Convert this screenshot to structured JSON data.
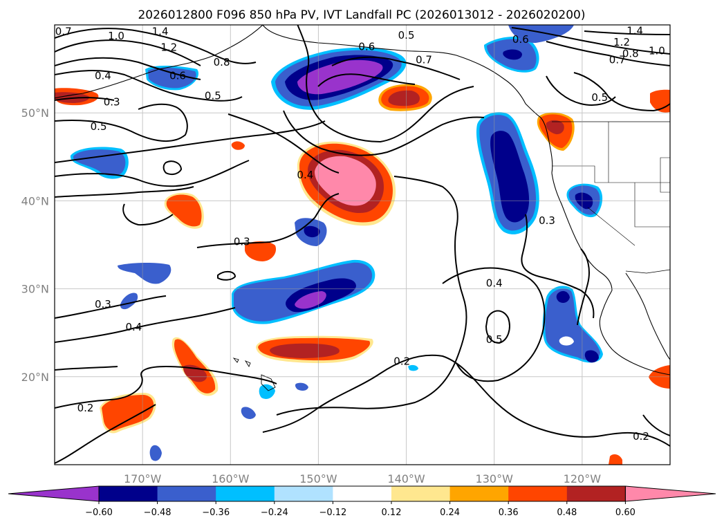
{
  "chart_data": {
    "type": "heatmap",
    "title": "2026012800 F096 850 hPa PV, IVT Landfall PC (2026013012 - 2026020200)",
    "xlabel": "",
    "ylabel": "",
    "lon_range": [
      -180,
      -110
    ],
    "lat_range": [
      10,
      60
    ],
    "x_ticks": [
      {
        "value": -170,
        "label": "170°W"
      },
      {
        "value": -160,
        "label": "160°W"
      },
      {
        "value": -150,
        "label": "150°W"
      },
      {
        "value": -140,
        "label": "140°W"
      },
      {
        "value": -130,
        "label": "130°W"
      },
      {
        "value": -120,
        "label": "120°W"
      }
    ],
    "y_ticks": [
      {
        "value": 20,
        "label": "20°N"
      },
      {
        "value": 30,
        "label": "30°N"
      },
      {
        "value": 40,
        "label": "40°N"
      },
      {
        "value": 50,
        "label": "50°N"
      }
    ],
    "colorbar": {
      "ticks": [
        {
          "value": -0.6,
          "label": "−0.60"
        },
        {
          "value": -0.48,
          "label": "−0.48"
        },
        {
          "value": -0.36,
          "label": "−0.36"
        },
        {
          "value": -0.24,
          "label": "−0.24"
        },
        {
          "value": -0.12,
          "label": "−0.12"
        },
        {
          "value": 0.12,
          "label": "0.12"
        },
        {
          "value": 0.24,
          "label": "0.24"
        },
        {
          "value": 0.36,
          "label": "0.36"
        },
        {
          "value": 0.48,
          "label": "0.48"
        },
        {
          "value": 0.6,
          "label": "0.60"
        }
      ],
      "colors": [
        "#9933cc",
        "#00008b",
        "#3a5fcd",
        "#00bfff",
        "#b0e2ff",
        "#ffffff",
        "#ffe78f",
        "#ffa500",
        "#ff4500",
        "#b22222",
        "#ff88aa"
      ]
    },
    "contour_labels": [
      {
        "text": "0.7",
        "lon": -179,
        "lat": 59.0
      },
      {
        "text": "1.0",
        "lon": -173,
        "lat": 58.5
      },
      {
        "text": "1.4",
        "lon": -168,
        "lat": 59.0
      },
      {
        "text": "1.2",
        "lon": -167,
        "lat": 57.2
      },
      {
        "text": "0.8",
        "lon": -161,
        "lat": 55.5
      },
      {
        "text": "0.6",
        "lon": -166,
        "lat": 54.0
      },
      {
        "text": "0.4",
        "lon": -174.5,
        "lat": 54.0
      },
      {
        "text": "0.5",
        "lon": -162,
        "lat": 51.7
      },
      {
        "text": "0.3",
        "lon": -173.5,
        "lat": 51.0
      },
      {
        "text": "0.5",
        "lon": -175,
        "lat": 48.2
      },
      {
        "text": "0.5",
        "lon": -140,
        "lat": 58.6
      },
      {
        "text": "0.6",
        "lon": -144.5,
        "lat": 57.3
      },
      {
        "text": "0.7",
        "lon": -138,
        "lat": 55.8
      },
      {
        "text": "0.6",
        "lon": -127,
        "lat": 58.1
      },
      {
        "text": "1.4",
        "lon": -114,
        "lat": 59.1
      },
      {
        "text": "1.2",
        "lon": -115.5,
        "lat": 57.8
      },
      {
        "text": "1.0",
        "lon": -111.5,
        "lat": 56.8
      },
      {
        "text": "0.8",
        "lon": -114.5,
        "lat": 56.5
      },
      {
        "text": "0.7",
        "lon": -116,
        "lat": 55.8
      },
      {
        "text": "0.5",
        "lon": -118,
        "lat": 51.5
      },
      {
        "text": "0.4",
        "lon": -151.5,
        "lat": 42.7
      },
      {
        "text": "0.3",
        "lon": -124,
        "lat": 37.5
      },
      {
        "text": "0.3",
        "lon": -158.7,
        "lat": 35.1
      },
      {
        "text": "0.3",
        "lon": -174.5,
        "lat": 28.0
      },
      {
        "text": "0.4",
        "lon": -171,
        "lat": 25.4
      },
      {
        "text": "0.4",
        "lon": -130,
        "lat": 30.4
      },
      {
        "text": "0.5",
        "lon": -130,
        "lat": 24.0
      },
      {
        "text": "0.2",
        "lon": -140.5,
        "lat": 21.5
      },
      {
        "text": "0.2",
        "lon": -176.5,
        "lat": 16.2
      },
      {
        "text": "0.2",
        "lon": -113.3,
        "lat": 13.0
      }
    ],
    "shaded_regions": [
      {
        "name": "gulf-of-alaska-negative-anomaly",
        "lon": [
          -157,
          -138
        ],
        "lat": [
          51,
          57.5
        ],
        "peak": -0.65
      },
      {
        "name": "northeast-pacific-positive-anomaly",
        "lon": [
          -155,
          -142
        ],
        "lat": [
          37,
          45
        ],
        "peak": 0.65
      },
      {
        "name": "offshore-pacific-northwest-negative-anomaly",
        "lon": [
          -131,
          -125
        ],
        "lat": [
          37,
          48.5
        ],
        "peak": -0.6
      },
      {
        "name": "subtropical-negative-band",
        "lon": [
          -162,
          -143
        ],
        "lat": [
          28,
          33.5
        ],
        "peak": -0.62
      },
      {
        "name": "subtropical-positive-band",
        "lon": [
          -157,
          -143
        ],
        "lat": [
          21,
          23.8
        ],
        "peak": 0.5
      },
      {
        "name": "baja-negative-anomaly",
        "lon": [
          -122,
          -118
        ],
        "lat": [
          21,
          30
        ],
        "peak": -0.5
      },
      {
        "name": "western-pacific-positive-anomaly",
        "lon": [
          -167,
          -163
        ],
        "lat": [
          22,
          25
        ],
        "peak": 0.48
      },
      {
        "name": "north-pacific-positive-anomaly",
        "lon": [
          -145,
          -138
        ],
        "lat": [
          50,
          53
        ],
        "peak": 0.5
      }
    ]
  }
}
